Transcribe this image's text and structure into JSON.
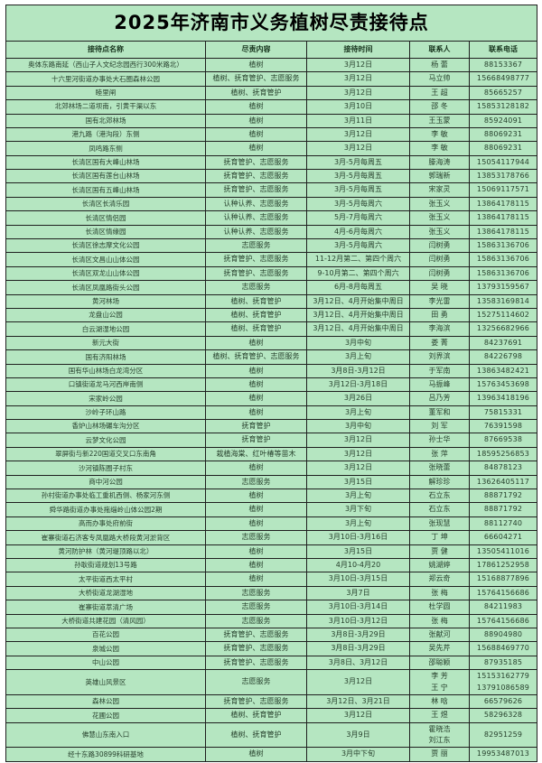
{
  "page": {
    "title": "2025年济南市义务植树尽责接待点"
  },
  "colors": {
    "cell_bg": "#b5e6c1",
    "border": "#1f1f1f",
    "text": "#26402c",
    "page_bg": "#ffffff"
  },
  "table": {
    "headers": [
      "接待点名称",
      "尽责内容",
      "接待时间",
      "联系人",
      "联系电话"
    ],
    "rows": [
      [
        "奥体东路南延（西山子人文纪念园西行300米路北）",
        "植树",
        "3月12日",
        "杨 蕾",
        "88153367"
      ],
      [
        "十六里河街道办事处大石圈森林公园",
        "植树、抚育管护、志愿服务",
        "3月12日",
        "马立帅",
        "15668498777"
      ],
      [
        "睦里闸",
        "植树、抚育管护",
        "3月12日",
        "王 超",
        "85665257"
      ],
      [
        "北郊林场二道坝南，引黄干渠以东",
        "植树",
        "3月10日",
        "邵 冬",
        "15853128182"
      ],
      [
        "国有北郊林场",
        "植树",
        "3月11日",
        "王玉蒙",
        "85924091"
      ],
      [
        "港九路（港沟段）东侧",
        "植树",
        "3月12日",
        "李 敏",
        "88069231"
      ],
      [
        "凤鸣路东侧",
        "植树",
        "3月12日",
        "李 敏",
        "88069231"
      ],
      [
        "长清区国有大峰山林场",
        "抚育管护、志愿服务",
        "3月-5月每周五",
        "滕海涛",
        "15054117944"
      ],
      [
        "长清区国有莲台山林场",
        "抚育管护、志愿服务",
        "3月-5月每周五",
        "郭瑞新",
        "13853178766"
      ],
      [
        "长清区国有五峰山林场",
        "抚育管护、志愿服务",
        "3月-5月每周五",
        "宋家灵",
        "15069117571"
      ],
      [
        "长清区长清乐园",
        "认种认养、志愿服务",
        "3月-5月每周六",
        "张玉义",
        "13864178115"
      ],
      [
        "长清区情侣园",
        "认种认养、志愿服务",
        "5月-7月每周六",
        "张玉义",
        "13864178115"
      ],
      [
        "长清区情缘园",
        "认种认养、志愿服务",
        "4月-6月每周六",
        "张玉义",
        "13864178115"
      ],
      [
        "长清区徐志摩文化公园",
        "志愿服务",
        "3月-5月每周六",
        "闫树勇",
        "15863136706"
      ],
      [
        "长清区文昌山山体公园",
        "抚育管护、志愿服务",
        "11-12月第二、第四个周六",
        "闫树勇",
        "15863136706"
      ],
      [
        "长清区双龙山山体公园",
        "抚育管护、志愿服务",
        "9-10月第二、第四个周六",
        "闫树勇",
        "15863136706"
      ],
      [
        "长清区凤凰路街头公园",
        "志愿服务",
        "6月-8月每周五",
        "吴 晓",
        "13793159567"
      ],
      [
        "黄河林场",
        "植树、抚育管护",
        "3月12日、4月开始集中周日",
        "李光雷",
        "13583169814"
      ],
      [
        "龙盘山公园",
        "植树、抚育管护",
        "3月12日、4月开始集中周日",
        "田 勇",
        "15275114602"
      ],
      [
        "白云湖湿地公园",
        "植树、抚育管护",
        "3月12日、4月开始集中周日",
        "李海滨",
        "13256682966"
      ],
      [
        "新元大街",
        "植树",
        "3月中旬",
        "娄 菁",
        "84237691"
      ],
      [
        "国有济阳林场",
        "植树、抚育管护、志愿服务",
        "3月上旬",
        "刘界滨",
        "84226798"
      ],
      [
        "国有华山林场白龙湾分区",
        "植树",
        "3月8日-3月12日",
        "于军南",
        "13863482421"
      ],
      [
        "口镇街道龙马河西岸南侧",
        "植树",
        "3月12日-3月18日",
        "马振峰",
        "15763453698"
      ],
      [
        "宋家岭公园",
        "植树",
        "3月26日",
        "吕乃芳",
        "13963418196"
      ],
      [
        "沙岭子环山路",
        "植树",
        "3月上旬",
        "董军和",
        "75815331"
      ],
      [
        "香炉山林场碾车沟分区",
        "抚育管护",
        "3月中旬",
        "刘 军",
        "76391598"
      ],
      [
        "云梦文化公园",
        "抚育管护",
        "3月12日",
        "孙士华",
        "87669538"
      ],
      [
        "翠屏街与新220国道交叉口东南角",
        "栽植海棠、红叶椿等苗木",
        "3月12日",
        "张 萍",
        "18595256853"
      ],
      [
        "沙河镇陈圈子村东",
        "植树",
        "3月12日",
        "张晓蕾",
        "84878123"
      ],
      [
        "商中河公园",
        "志愿服务",
        "3月15日",
        "解珍珍",
        "13626405117"
      ],
      [
        "孙村街道办事处临工重机西侧、杨家河东侧",
        "植树",
        "3月上旬",
        "石立东",
        "88871792"
      ],
      [
        "舜华路街道办事处拖缁岭山体公园2期",
        "植树",
        "3月下旬",
        "石立东",
        "88871792"
      ],
      [
        "高而办事处府前街",
        "植树",
        "3月上旬",
        "张现慧",
        "88112740"
      ],
      [
        "崔寨街道石济客专凤凰路大桥段黄河淤背区",
        "志愿服务",
        "3月10日-3月16日",
        "丁 坤",
        "66604271"
      ],
      [
        "黄河防护林（黄河堤顶路以北）",
        "植树",
        "3月15日",
        "贾 健",
        "13505411016"
      ],
      [
        "孙耿街道规划13号路",
        "植树",
        "4月10-4月20",
        "姚湖婷",
        "17861252958"
      ],
      [
        "太平街道西太平村",
        "植树",
        "3月10日-3月15日",
        "郑云奇",
        "15168877896"
      ],
      [
        "大桥街道龙湖湿地",
        "志愿服务",
        "3月7日",
        "张 梅",
        "15764156686"
      ],
      [
        "崔寨街道萃清广场",
        "志愿服务",
        "3月10日-3月14日",
        "杜学圆",
        "84211983"
      ],
      [
        "大桥街道共建花园（清风园）",
        "志愿服务",
        "3月10日-3月12日",
        "张 梅",
        "15764156686"
      ],
      [
        "百花公园",
        "抚育管护、志愿服务",
        "3月8日-3月29日",
        "张献河",
        "88904980"
      ],
      [
        "泉城公园",
        "抚育管护、志愿服务",
        "3月8日-3月29日",
        "吴先芹",
        "15688469770"
      ],
      [
        "中山公园",
        "抚育管护、志愿服务",
        "3月8日、3月12日",
        "邵聪颖",
        "87935185"
      ],
      [
        "英雄山风景区",
        "志愿服务",
        "3月12日",
        "李 芳\n王 宁",
        "15153162779\n13791086589"
      ],
      [
        "森林公园",
        "抚育管护、志愿服务",
        "3月12日、3月21日",
        "林 晗",
        "66579626"
      ],
      [
        "花圃公园",
        "植树、抚育管护",
        "3月12日",
        "王 煜",
        "58296328"
      ],
      [
        "佛慧山东南入口",
        "植树、抚育管护",
        "3月9日",
        "霍晓浩\n刘江东",
        "82951259"
      ],
      [
        "经十东路30899科研基地",
        "植树",
        "3月中下旬",
        "贾 丽",
        "19953487013"
      ]
    ]
  }
}
